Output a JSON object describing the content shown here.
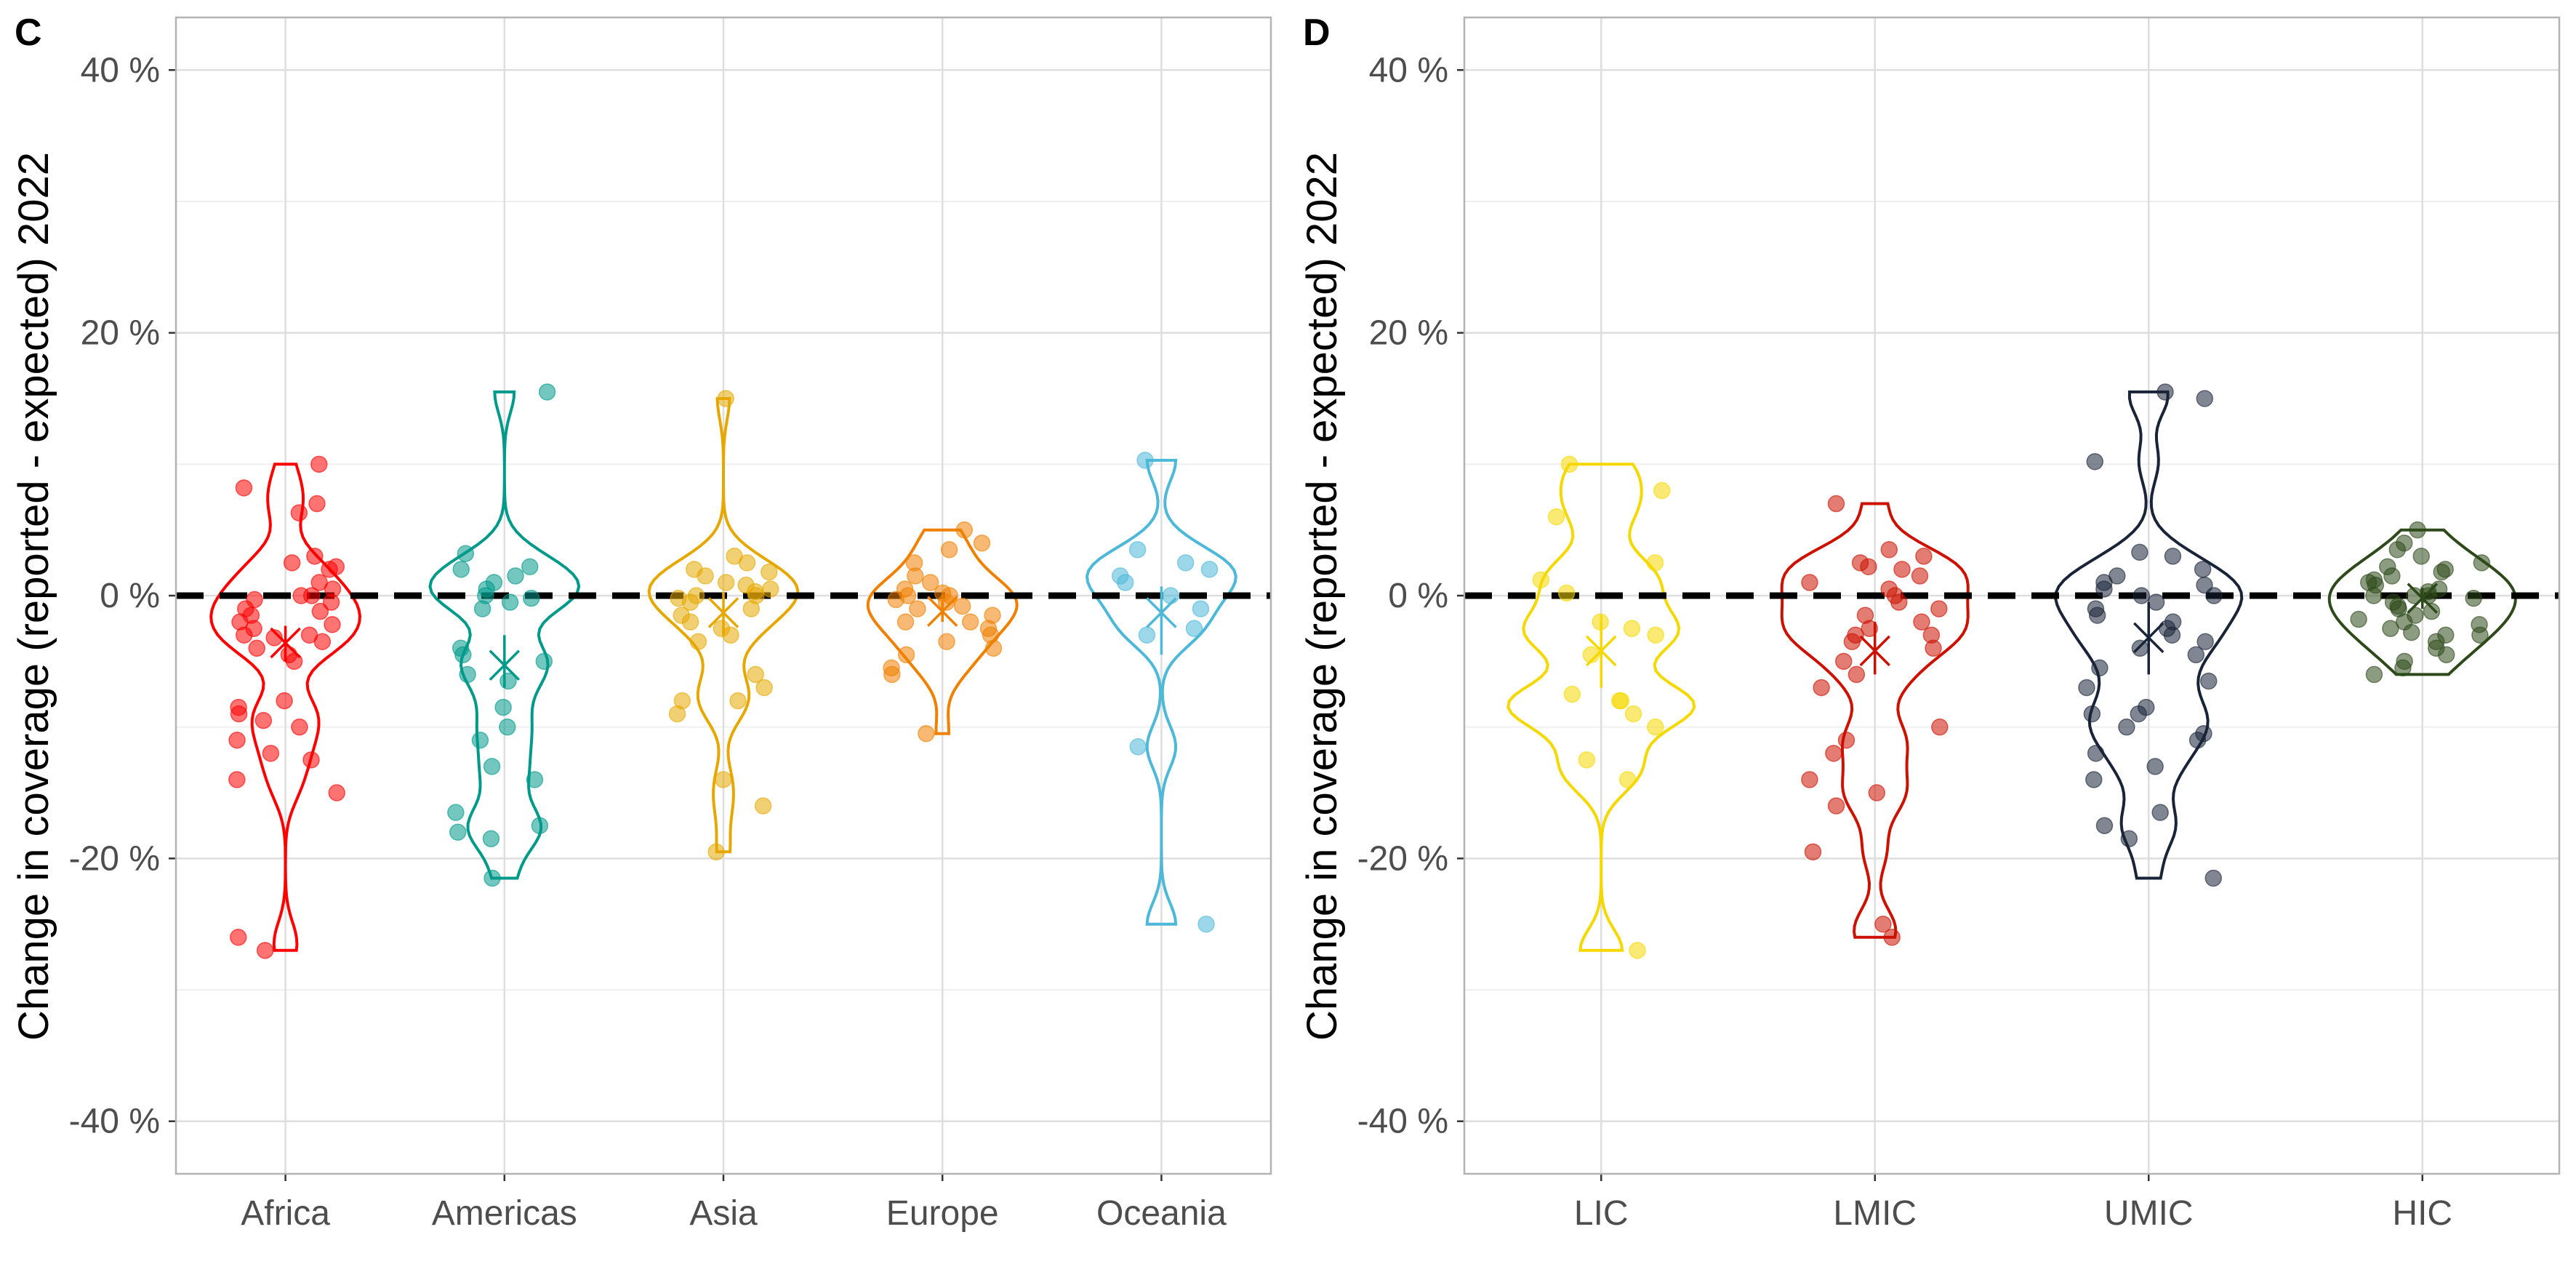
{
  "chart_data": [
    {
      "type": "violin",
      "panel_tag": "C",
      "ylabel": "Change in coverage (reported - expected) 2022",
      "ylim": [
        -44,
        44
      ],
      "yticks": [
        40,
        20,
        0,
        -20,
        -40
      ],
      "ytick_labels": [
        "40 %",
        "20 %",
        "0 %",
        "-20 %",
        "-40 %"
      ],
      "reference_line": 0,
      "grid": true,
      "categories": [
        "Africa",
        "Americas",
        "Asia",
        "Europe",
        "Oceania"
      ],
      "series": [
        {
          "category": "Africa",
          "color": "#FF0000",
          "mean": -3.6,
          "ci": [
            -5,
            -2.3
          ],
          "points": [
            10,
            8.2,
            7,
            6.3,
            3,
            2.5,
            2.2,
            2,
            1,
            0.5,
            0,
            0,
            -0.3,
            -0.5,
            -1,
            -1.2,
            -1.5,
            -2,
            -2.2,
            -2.5,
            -3,
            -3,
            -3.2,
            -3.5,
            -4,
            -4.5,
            -5,
            -8,
            -8.5,
            -9,
            -9.5,
            -10,
            -11,
            -12,
            -12.5,
            -14,
            -15,
            -26,
            -27
          ]
        },
        {
          "category": "Americas",
          "color": "#00998A",
          "mean": -5.3,
          "ci": [
            -7,
            -3
          ],
          "points": [
            15.5,
            3.2,
            2.2,
            2,
            1.5,
            1,
            0.5,
            0,
            -0.2,
            -0.5,
            -1,
            -4,
            -4.5,
            -5,
            -6,
            -6.5,
            -8.5,
            -10,
            -11,
            -13,
            -14,
            -16.5,
            -17.5,
            -18,
            -18.5,
            -21.5
          ]
        },
        {
          "category": "Asia",
          "color": "#E6A800",
          "mean": -1.3,
          "ci": [
            -3,
            0.3
          ],
          "points": [
            15,
            3,
            2.5,
            2,
            1.8,
            1.5,
            1,
            0.8,
            0.5,
            0.3,
            0,
            0,
            -0.2,
            -0.5,
            -1,
            -1.5,
            -2,
            -2.5,
            -3,
            -3.5,
            -6,
            -7,
            -8,
            -8,
            -9,
            -14,
            -16,
            -19.5
          ]
        },
        {
          "category": "Europe",
          "color": "#F08000",
          "mean": -1.2,
          "ci": [
            -2,
            -0.4
          ],
          "points": [
            5,
            4,
            3.5,
            2.5,
            1.5,
            1,
            0.5,
            0.2,
            0,
            0,
            -0.3,
            -0.5,
            -0.8,
            -1,
            -1.5,
            -2,
            -2,
            -2.5,
            -3,
            -3.5,
            -4,
            -4.5,
            -5.5,
            -6,
            -10.5
          ]
        },
        {
          "category": "Oceania",
          "color": "#4DB8D8",
          "mean": -1.3,
          "ci": [
            -4.5,
            0.7
          ],
          "points": [
            10.3,
            3.5,
            2.5,
            2,
            1.5,
            1,
            0,
            -1,
            -2.5,
            -3,
            -11.5,
            -25
          ]
        }
      ]
    },
    {
      "type": "violin",
      "panel_tag": "D",
      "ylabel": "Change in coverage (reported - expected) 2022",
      "ylim": [
        -44,
        44
      ],
      "yticks": [
        40,
        20,
        0,
        -20,
        -40
      ],
      "ytick_labels": [
        "40 %",
        "20 %",
        "0 %",
        "-20 %",
        "-40 %"
      ],
      "reference_line": 0,
      "grid": true,
      "categories": [
        "LIC",
        "LMIC",
        "UMIC",
        "HIC"
      ],
      "series": [
        {
          "category": "LIC",
          "color": "#F5D800",
          "mean": -4.2,
          "ci": [
            -7,
            -1.5
          ],
          "points": [
            10,
            8,
            6,
            2.5,
            1.2,
            0.2,
            -2,
            -2.5,
            -3,
            -4.5,
            -7.5,
            -8,
            -8,
            -9,
            -10,
            -12.5,
            -14,
            -27
          ]
        },
        {
          "category": "LMIC",
          "color": "#CC1100",
          "mean": -4.2,
          "ci": [
            -6,
            -2
          ],
          "points": [
            7,
            3.5,
            3,
            2.5,
            2.2,
            2,
            1.5,
            1,
            0.5,
            0,
            -0.5,
            -1,
            -1.5,
            -2,
            -2.5,
            -3,
            -3,
            -3.5,
            -4,
            -5,
            -6,
            -7,
            -10,
            -11,
            -12,
            -14,
            -15,
            -16,
            -19.5,
            -25,
            -26
          ]
        },
        {
          "category": "UMIC",
          "color": "#1A2438",
          "mean": -3.2,
          "ci": [
            -6,
            -0.5
          ],
          "points": [
            15.5,
            15,
            10.2,
            3.3,
            3,
            2,
            1.5,
            1,
            0.8,
            0.5,
            0,
            0,
            -0.5,
            -1,
            -1.5,
            -2,
            -2.5,
            -3,
            -3.5,
            -4,
            -4.5,
            -5.5,
            -6.5,
            -7,
            -8.5,
            -9,
            -9,
            -10,
            -10.5,
            -11,
            -12,
            -13,
            -14,
            -16.5,
            -17.5,
            -18.5,
            -21.5
          ]
        },
        {
          "category": "HIC",
          "color": "#2E4A1A",
          "mean": -0.2,
          "ci": [
            -1,
            0.6
          ],
          "points": [
            5,
            4,
            3.5,
            3,
            2.5,
            2.2,
            2,
            1.8,
            1.5,
            1.2,
            1,
            0.8,
            0.5,
            0.3,
            0,
            0,
            0,
            -0.2,
            -0.5,
            -0.8,
            -1,
            -1.2,
            -1.5,
            -1.8,
            -2,
            -2.2,
            -2.5,
            -2.8,
            -3,
            -3,
            -3.5,
            -4,
            -4.5,
            -5,
            -5.5,
            -6
          ]
        }
      ]
    }
  ]
}
